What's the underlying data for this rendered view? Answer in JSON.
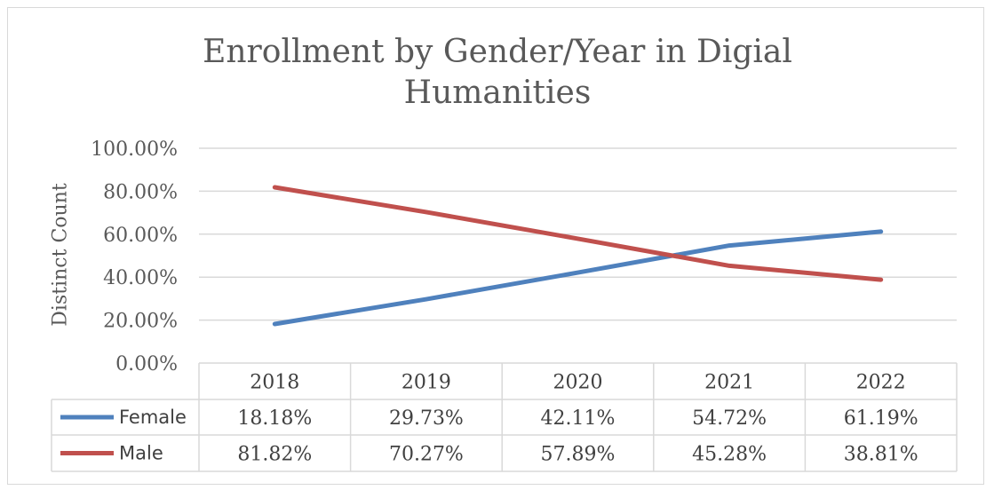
{
  "chart_data": {
    "type": "line",
    "title": "Enrollment by Gender/Year in Digial Humanities",
    "title_lines": [
      "Enrollment by Gender/Year in Digial",
      "Humanities"
    ],
    "ylabel": "Distinct  Count",
    "xlabel": "",
    "ylim": [
      0,
      100
    ],
    "y_ticks": [
      0,
      20,
      40,
      60,
      80,
      100
    ],
    "y_tick_labels": [
      "0.00%",
      "20.00%",
      "40.00%",
      "60.00%",
      "80.00%",
      "100.00%"
    ],
    "grid": true,
    "categories": [
      "2018",
      "2019",
      "2020",
      "2021",
      "2022"
    ],
    "series": [
      {
        "name": "Female",
        "color": "#4f81bd",
        "values": [
          18.18,
          29.73,
          42.11,
          54.72,
          61.19
        ],
        "labels": [
          "18.18%",
          "29.73%",
          "42.11%",
          "54.72%",
          "61.19%"
        ]
      },
      {
        "name": "Male",
        "color": "#c0504d",
        "values": [
          81.82,
          70.27,
          57.89,
          45.28,
          38.81
        ],
        "labels": [
          "81.82%",
          "70.27%",
          "57.89%",
          "45.28%",
          "38.81%"
        ]
      }
    ],
    "legend": "data-table"
  }
}
